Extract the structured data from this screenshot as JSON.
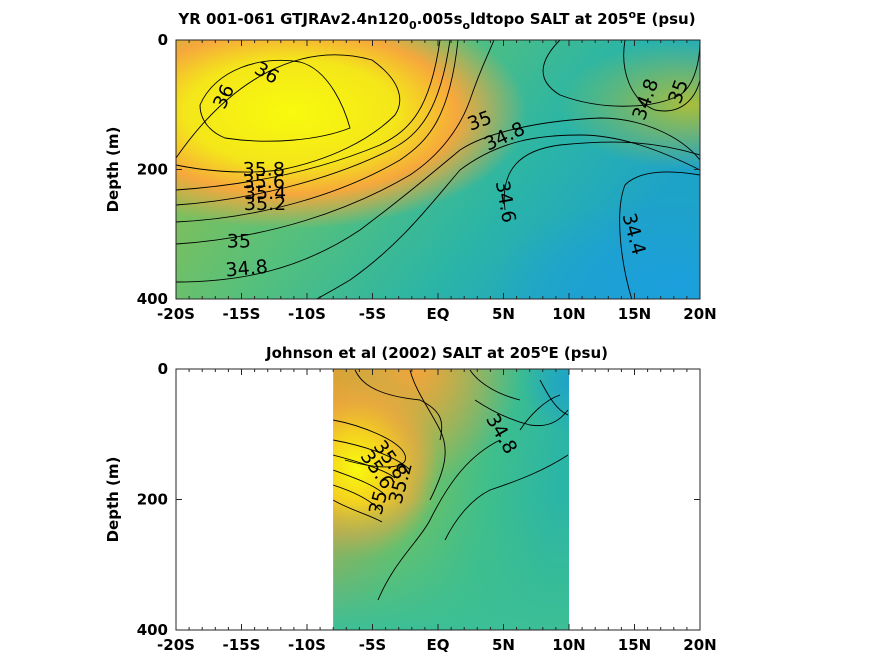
{
  "colors": {
    "yellow": "#f8fa0d",
    "orange": "#f6a83c",
    "olive": "#a8be3c",
    "green": "#3fbf8b",
    "teal": "#2bb5a6",
    "cyan": "#1c9fdc"
  },
  "chart_data": [
    {
      "type": "heatmap",
      "title_parts": [
        "YR 001-061 GTJRAv2.4n120",
        "0",
        ".005s",
        "o",
        "ldtopo SALT at 205",
        "o",
        "E (psu)"
      ],
      "xlabel": "",
      "ylabel": "Depth (m)",
      "x_ticks": [
        "-20S",
        "-15S",
        "-10S",
        "-5S",
        "EQ",
        "5N",
        "10N",
        "15N",
        "20N"
      ],
      "y_ticks": [
        "0",
        "200",
        "400"
      ],
      "xlim": [
        -20,
        20
      ],
      "ylim": [
        0,
        400
      ],
      "y_reversed": true,
      "data_range": [
        -20,
        20
      ],
      "contour_levels": [
        {
          "label": "36",
          "x": -16.3,
          "y": 88,
          "rot": -65
        },
        {
          "label": "36",
          "x": -13.1,
          "y": 52,
          "rot": 30
        },
        {
          "label": "35.8",
          "x": -13.3,
          "y": 201,
          "rot": 0
        },
        {
          "label": "35.6",
          "x": -13.3,
          "y": 220,
          "rot": 0
        },
        {
          "label": "35.4",
          "x": -13.2,
          "y": 237,
          "rot": 0
        },
        {
          "label": "35.2",
          "x": -13.2,
          "y": 254,
          "rot": 0
        },
        {
          "label": "35",
          "x": -15.2,
          "y": 312,
          "rot": 0
        },
        {
          "label": "34.8",
          "x": -14.6,
          "y": 354,
          "rot": -5
        },
        {
          "label": "35",
          "x": 3.2,
          "y": 126,
          "rot": -20
        },
        {
          "label": "34.8",
          "x": 5.1,
          "y": 150,
          "rot": -25
        },
        {
          "label": "34.6",
          "x": 5.1,
          "y": 250,
          "rot": 80
        },
        {
          "label": "34.4",
          "x": 14.9,
          "y": 300,
          "rot": 75
        },
        {
          "label": "34.8",
          "x": 15.9,
          "y": 92,
          "rot": -70
        },
        {
          "label": "35",
          "x": 18.4,
          "y": 80,
          "rot": -70
        }
      ]
    },
    {
      "type": "heatmap",
      "title_parts": [
        "Johnson et al (2002) SALT at 205",
        "o",
        "E (psu)"
      ],
      "xlabel": "",
      "ylabel": "Depth (m)",
      "x_ticks": [
        "-20S",
        "-15S",
        "-10S",
        "-5S",
        "EQ",
        "5N",
        "10N",
        "15N",
        "20N"
      ],
      "y_ticks": [
        "0",
        "200",
        "400"
      ],
      "xlim": [
        -20,
        20
      ],
      "ylim": [
        0,
        400
      ],
      "y_reversed": true,
      "data_range": [
        -8,
        10
      ],
      "contour_levels": [
        {
          "label": "34.8",
          "x": 4.8,
          "y": 100,
          "rot": 60
        },
        {
          "label": "35",
          "x": -4.5,
          "y": 205,
          "rot": -75
        },
        {
          "label": "35.2",
          "x": -2.8,
          "y": 175,
          "rot": -75
        },
        {
          "label": "35.8",
          "x": -3.7,
          "y": 140,
          "rot": 55
        },
        {
          "label": "35.6",
          "x": -4.7,
          "y": 155,
          "rot": 55
        }
      ]
    }
  ]
}
